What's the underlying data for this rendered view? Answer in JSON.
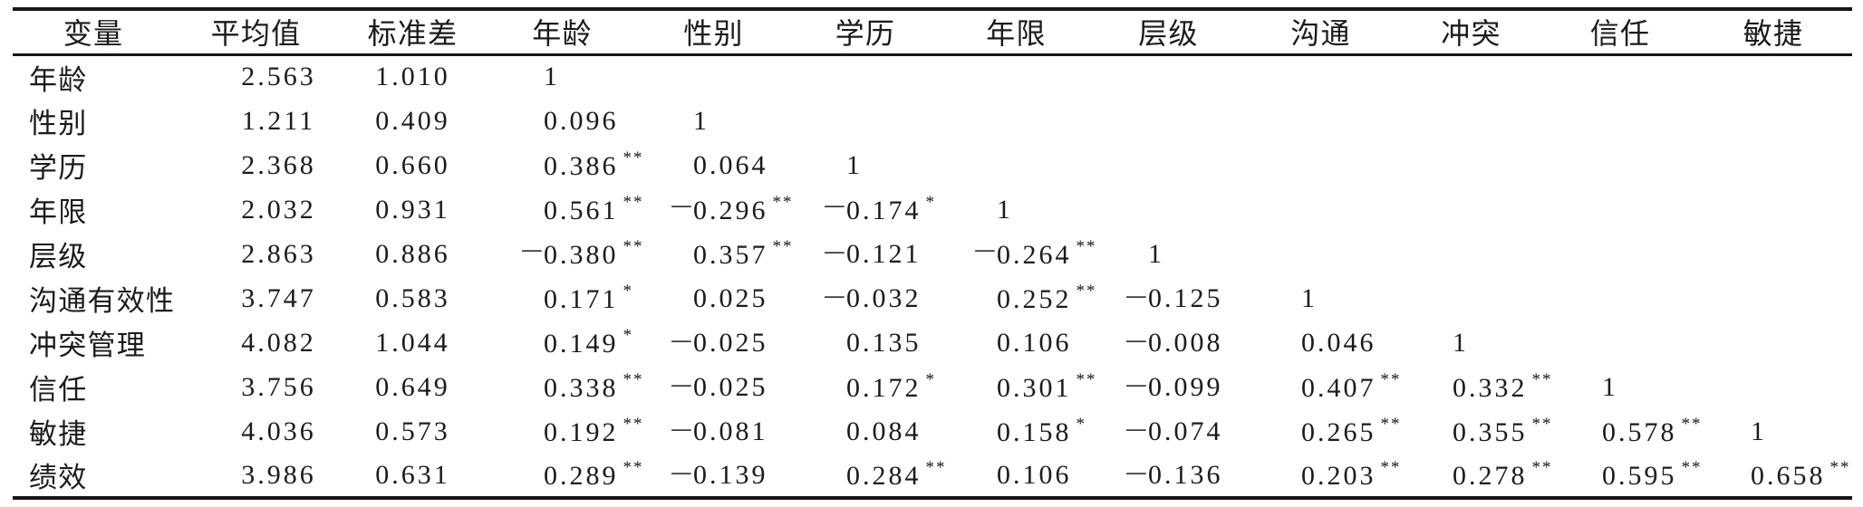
{
  "page": {
    "background_color": "#ffffff",
    "text_color": "#1b1b1b",
    "rule_color": "#161616"
  },
  "table": {
    "columns": [
      "变量",
      "平均值",
      "标准差",
      "年龄",
      "性别",
      "学历",
      "年限",
      "层级",
      "沟通",
      "冲突",
      "信任",
      "敏捷"
    ],
    "rows": [
      {
        "label": "年龄",
        "mean": "2.563",
        "sd": "1.010",
        "corr": [
          {
            "v": "1"
          }
        ]
      },
      {
        "label": "性别",
        "mean": "1.211",
        "sd": "0.409",
        "corr": [
          {
            "v": "0.096"
          },
          {
            "v": "1"
          }
        ]
      },
      {
        "label": "学历",
        "mean": "2.368",
        "sd": "0.660",
        "corr": [
          {
            "v": "0.386",
            "s": "**"
          },
          {
            "v": "0.064"
          },
          {
            "v": "1"
          }
        ]
      },
      {
        "label": "年限",
        "mean": "2.032",
        "sd": "0.931",
        "corr": [
          {
            "v": "0.561",
            "s": "**"
          },
          {
            "v": "-0.296",
            "s": "**"
          },
          {
            "v": "-0.174",
            "s": "*"
          },
          {
            "v": "1"
          }
        ]
      },
      {
        "label": "层级",
        "mean": "2.863",
        "sd": "0.886",
        "corr": [
          {
            "v": "-0.380",
            "s": "**"
          },
          {
            "v": "0.357",
            "s": "**"
          },
          {
            "v": "-0.121"
          },
          {
            "v": "-0.264",
            "s": "**"
          },
          {
            "v": "1"
          }
        ]
      },
      {
        "label": "沟通有效性",
        "mean": "3.747",
        "sd": "0.583",
        "corr": [
          {
            "v": "0.171",
            "s": "*"
          },
          {
            "v": "0.025"
          },
          {
            "v": "-0.032"
          },
          {
            "v": "0.252",
            "s": "**"
          },
          {
            "v": "-0.125"
          },
          {
            "v": "1"
          }
        ]
      },
      {
        "label": "冲突管理",
        "mean": "4.082",
        "sd": "1.044",
        "corr": [
          {
            "v": "0.149",
            "s": "*"
          },
          {
            "v": "-0.025"
          },
          {
            "v": "0.135"
          },
          {
            "v": "0.106"
          },
          {
            "v": "-0.008"
          },
          {
            "v": "0.046"
          },
          {
            "v": "1"
          }
        ]
      },
      {
        "label": "信任",
        "mean": "3.756",
        "sd": "0.649",
        "corr": [
          {
            "v": "0.338",
            "s": "**"
          },
          {
            "v": "-0.025"
          },
          {
            "v": "0.172",
            "s": "*"
          },
          {
            "v": "0.301",
            "s": "**"
          },
          {
            "v": "-0.099"
          },
          {
            "v": "0.407",
            "s": "**"
          },
          {
            "v": "0.332",
            "s": "**"
          },
          {
            "v": "1"
          }
        ]
      },
      {
        "label": "敏捷",
        "mean": "4.036",
        "sd": "0.573",
        "corr": [
          {
            "v": "0.192",
            "s": "**"
          },
          {
            "v": "-0.081"
          },
          {
            "v": "0.084"
          },
          {
            "v": "0.158",
            "s": "*"
          },
          {
            "v": "-0.074"
          },
          {
            "v": "0.265",
            "s": "**"
          },
          {
            "v": "0.355",
            "s": "**"
          },
          {
            "v": "0.578",
            "s": "**"
          },
          {
            "v": "1"
          }
        ]
      },
      {
        "label": "绩效",
        "mean": "3.986",
        "sd": "0.631",
        "corr": [
          {
            "v": "0.289",
            "s": "**"
          },
          {
            "v": "-0.139"
          },
          {
            "v": "0.284",
            "s": "**"
          },
          {
            "v": "0.106"
          },
          {
            "v": "-0.136"
          },
          {
            "v": "0.203",
            "s": "**"
          },
          {
            "v": "0.278",
            "s": "**"
          },
          {
            "v": "0.595",
            "s": "**"
          },
          {
            "v": "0.658",
            "s": "**"
          }
        ]
      }
    ]
  }
}
